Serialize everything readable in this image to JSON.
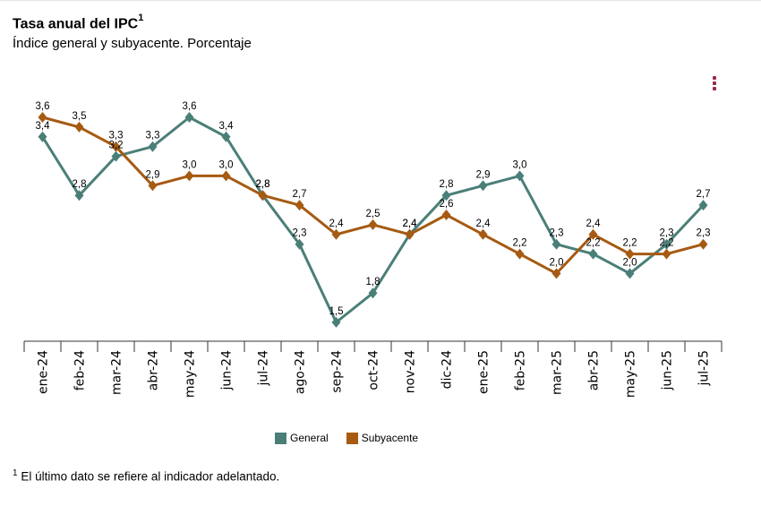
{
  "header": {
    "title": "Tasa anual del IPC",
    "title_sup": "1",
    "subtitle": "Índice general y subyacente. Porcentaje"
  },
  "menu_icon": "kebab-menu-icon",
  "footnote": {
    "sup": "1",
    "text": "El último dato se refiere al indicador adelantado."
  },
  "chart_data": {
    "type": "line",
    "title": "Tasa anual del IPC",
    "subtitle": "Índice general y subyacente. Porcentaje",
    "xlabel": "",
    "ylabel": "",
    "categories": [
      "ene-24",
      "feb-24",
      "mar-24",
      "abr-24",
      "may-24",
      "jun-24",
      "jul-24",
      "ago-24",
      "sep-24",
      "oct-24",
      "nov-24",
      "dic-24",
      "ene-25",
      "feb-25",
      "mar-25",
      "abr-25",
      "may-25",
      "jun-25",
      "jul-25"
    ],
    "series": [
      {
        "name": "General",
        "color": "#4a7f78",
        "marker": "diamond",
        "values": [
          3.4,
          2.8,
          3.2,
          3.3,
          3.6,
          3.4,
          2.8,
          2.3,
          1.5,
          1.8,
          2.4,
          2.8,
          2.9,
          3.0,
          2.3,
          2.2,
          2.0,
          2.3,
          2.7
        ],
        "labels": [
          "3,4",
          "2,8",
          "3,2",
          "3,3",
          "3,6",
          "3,4",
          "2,8",
          "2,3",
          "1,5",
          "1,8",
          "2,4",
          "2,8",
          "2,9",
          "3,0",
          "2,3",
          "2,2",
          "2,0",
          "2,3",
          "2,7"
        ]
      },
      {
        "name": "Subyacente",
        "color": "#a65a12",
        "marker": "diamond",
        "values": [
          3.6,
          3.5,
          3.3,
          2.9,
          3.0,
          3.0,
          2.8,
          2.7,
          2.4,
          2.5,
          2.4,
          2.6,
          2.4,
          2.2,
          2.0,
          2.4,
          2.2,
          2.2,
          2.3
        ],
        "labels": [
          "3,6",
          "3,5",
          "3,3",
          "2,9",
          "3,0",
          "3,0",
          "2,8",
          "2,7",
          "2,4",
          "2,5",
          "2,4",
          "2,6",
          "2,4",
          "2,2",
          "2,0",
          "2,4",
          "2,2",
          "2,2",
          "2,3"
        ]
      }
    ],
    "ylim": [
      1.3,
      3.8
    ],
    "grid": false,
    "y_axis_visible": false,
    "legend": "bottom-center",
    "x_tick_rotation": "vertical"
  }
}
